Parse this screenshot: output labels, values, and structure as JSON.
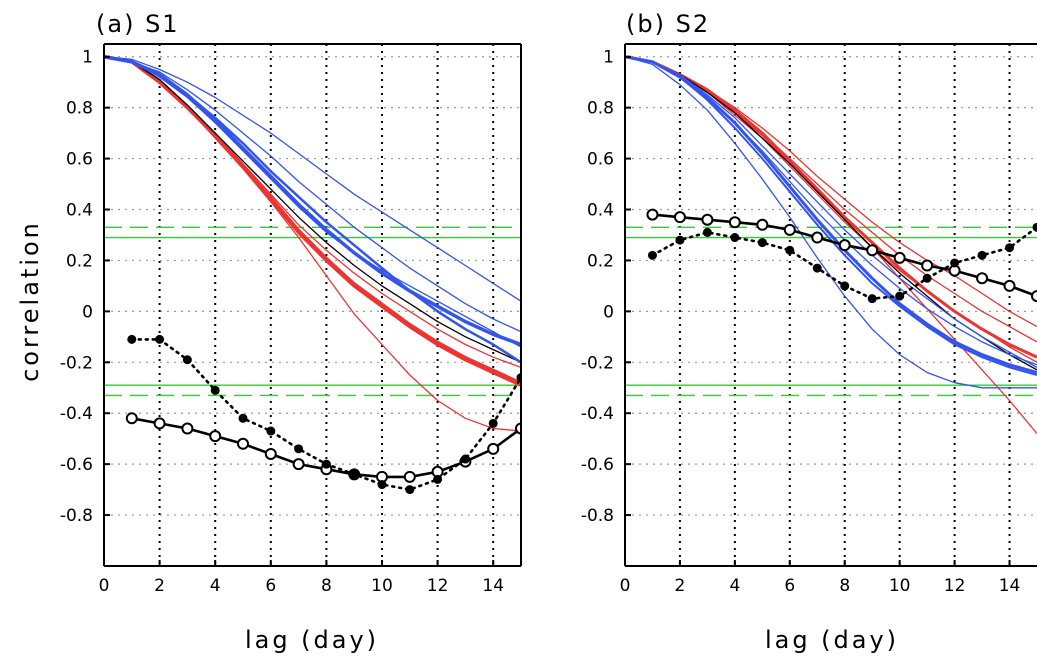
{
  "chart_data": [
    {
      "type": "line",
      "title": "(a) S1",
      "xlabel": "lag (day)",
      "ylabel": "correlation",
      "xlim": [
        0,
        15
      ],
      "ylim": [
        -1,
        1.05
      ],
      "xticks": [
        "0",
        "2",
        "4",
        "6",
        "8",
        "10",
        "12",
        "14"
      ],
      "yticks": [
        "1",
        "0.8",
        "0.6",
        "0.4",
        "0.2",
        "0",
        "-0.2",
        "-0.4",
        "-0.6",
        "-0.8"
      ],
      "grid": true,
      "significance_lines": {
        "solid": [
          0.29,
          -0.29
        ],
        "dashed": [
          0.33,
          -0.33
        ]
      },
      "series": [
        {
          "color": "#ee3333",
          "width": 3.5,
          "x": [
            0,
            1,
            2,
            3,
            4,
            5,
            6,
            7,
            8,
            9,
            10,
            11,
            12,
            13,
            14,
            15
          ],
          "y": [
            1,
            0.98,
            0.9,
            0.8,
            0.69,
            0.57,
            0.44,
            0.31,
            0.2,
            0.1,
            0.02,
            -0.06,
            -0.13,
            -0.19,
            -0.24,
            -0.29
          ]
        },
        {
          "color": "#ee3333",
          "width": 2.5,
          "x": [
            0,
            1,
            2,
            3,
            4,
            5,
            6,
            7,
            8,
            9,
            10,
            11,
            12,
            13,
            14,
            15
          ],
          "y": [
            1,
            0.98,
            0.9,
            0.8,
            0.69,
            0.57,
            0.45,
            0.32,
            0.21,
            0.11,
            0.03,
            -0.05,
            -0.12,
            -0.18,
            -0.23,
            -0.28
          ]
        },
        {
          "color": "#ee3333",
          "width": 1.3,
          "x": [
            0,
            1,
            2,
            3,
            4,
            5,
            6,
            7,
            8,
            9,
            10,
            11,
            12,
            13,
            14,
            15
          ],
          "y": [
            1,
            0.98,
            0.91,
            0.81,
            0.7,
            0.58,
            0.46,
            0.34,
            0.24,
            0.15,
            0.07,
            0,
            -0.07,
            -0.13,
            -0.18,
            -0.22
          ]
        },
        {
          "color": "#ee3333",
          "width": 1.3,
          "x": [
            0,
            1,
            2,
            3,
            4,
            5,
            6,
            7,
            8,
            9,
            10,
            11,
            12,
            13,
            14,
            15
          ],
          "y": [
            1,
            0.98,
            0.91,
            0.8,
            0.68,
            0.56,
            0.43,
            0.29,
            0.14,
            -0.01,
            -0.13,
            -0.25,
            -0.35,
            -0.42,
            -0.46,
            -0.47
          ]
        },
        {
          "color": "#000000",
          "width": 1.3,
          "x": [
            0,
            1,
            2,
            3,
            4,
            5,
            6,
            7,
            8,
            9,
            10,
            11,
            12,
            13,
            14,
            15
          ],
          "y": [
            1,
            0.98,
            0.91,
            0.81,
            0.7,
            0.59,
            0.48,
            0.37,
            0.27,
            0.18,
            0.1,
            0.03,
            -0.04,
            -0.1,
            -0.15,
            -0.2
          ]
        },
        {
          "color": "#3355ee",
          "width": 3.5,
          "x": [
            0,
            1,
            2,
            3,
            4,
            5,
            6,
            7,
            8,
            9,
            10,
            11,
            12,
            13,
            14,
            15
          ],
          "y": [
            1,
            0.98,
            0.93,
            0.85,
            0.75,
            0.64,
            0.53,
            0.42,
            0.32,
            0.23,
            0.15,
            0.08,
            0.02,
            -0.04,
            -0.09,
            -0.13
          ]
        },
        {
          "color": "#3355ee",
          "width": 2.5,
          "x": [
            0,
            1,
            2,
            3,
            4,
            5,
            6,
            7,
            8,
            9,
            10,
            11,
            12,
            13,
            14,
            15
          ],
          "y": [
            1,
            0.98,
            0.93,
            0.85,
            0.76,
            0.66,
            0.55,
            0.45,
            0.35,
            0.26,
            0.17,
            0.08,
            0,
            -0.07,
            -0.13,
            -0.2
          ]
        },
        {
          "color": "#3355ee",
          "width": 1.3,
          "x": [
            0,
            1,
            2,
            3,
            4,
            5,
            6,
            7,
            8,
            9,
            10,
            11,
            12,
            13,
            14,
            15
          ],
          "y": [
            1,
            0.99,
            0.95,
            0.9,
            0.84,
            0.77,
            0.7,
            0.62,
            0.54,
            0.46,
            0.39,
            0.32,
            0.25,
            0.18,
            0.11,
            0.04
          ]
        },
        {
          "color": "#3355ee",
          "width": 1.3,
          "x": [
            0,
            1,
            2,
            3,
            4,
            5,
            6,
            7,
            8,
            9,
            10,
            11,
            12,
            13,
            14,
            15
          ],
          "y": [
            1,
            0.98,
            0.94,
            0.87,
            0.79,
            0.7,
            0.61,
            0.51,
            0.42,
            0.33,
            0.25,
            0.17,
            0.1,
            0.03,
            -0.03,
            -0.08
          ]
        },
        {
          "color": "#3355ee",
          "width": 1.3,
          "x": [
            0,
            1,
            2,
            3,
            4,
            5,
            6,
            7,
            8,
            9,
            10,
            11,
            12,
            13,
            14,
            15
          ],
          "y": [
            1,
            0.98,
            0.92,
            0.84,
            0.74,
            0.63,
            0.52,
            0.41,
            0.31,
            0.23,
            0.16,
            0.1,
            0.04,
            -0.02,
            -0.08,
            -0.14
          ]
        }
      ],
      "marker_series": [
        {
          "style": "solid-open",
          "x": [
            1,
            2,
            3,
            4,
            5,
            6,
            7,
            8,
            9,
            10,
            11,
            12,
            13,
            14,
            15
          ],
          "y": [
            -0.42,
            -0.44,
            -0.46,
            -0.49,
            -0.52,
            -0.56,
            -0.6,
            -0.62,
            -0.64,
            -0.65,
            -0.65,
            -0.63,
            -0.59,
            -0.54,
            -0.46
          ]
        },
        {
          "style": "dotted-filled",
          "x": [
            1,
            2,
            3,
            4,
            5,
            6,
            7,
            8,
            9,
            10,
            11,
            12,
            13,
            14,
            15
          ],
          "y": [
            -0.11,
            -0.11,
            -0.19,
            -0.31,
            -0.42,
            -0.47,
            -0.54,
            -0.6,
            -0.64,
            -0.68,
            -0.7,
            -0.66,
            -0.58,
            -0.44,
            -0.26
          ]
        }
      ]
    },
    {
      "type": "line",
      "title": "(b) S2",
      "xlabel": "lag (day)",
      "ylabel": "",
      "xlim": [
        0,
        15
      ],
      "ylim": [
        -1,
        1.05
      ],
      "xticks": [
        "0",
        "2",
        "4",
        "6",
        "8",
        "10",
        "12",
        "14"
      ],
      "yticks": [
        "1",
        "0.8",
        "0.6",
        "0.4",
        "0.2",
        "0",
        "-0.2",
        "-0.4",
        "-0.6",
        "-0.8"
      ],
      "grid": true,
      "significance_lines": {
        "solid": [
          0.29,
          -0.29
        ],
        "dashed": [
          0.33,
          -0.33
        ]
      },
      "series": [
        {
          "color": "#ee3333",
          "width": 3.0,
          "x": [
            0,
            1,
            2,
            3,
            4,
            5,
            6,
            7,
            8,
            9,
            10,
            11,
            12,
            13,
            14,
            15
          ],
          "y": [
            1,
            0.98,
            0.93,
            0.87,
            0.79,
            0.7,
            0.59,
            0.48,
            0.37,
            0.27,
            0.17,
            0.08,
            0,
            -0.07,
            -0.13,
            -0.18
          ]
        },
        {
          "color": "#ee3333",
          "width": 1.3,
          "x": [
            0,
            1,
            2,
            3,
            4,
            5,
            6,
            7,
            8,
            9,
            10,
            11,
            12,
            13,
            14,
            15
          ],
          "y": [
            1,
            0.98,
            0.93,
            0.86,
            0.78,
            0.69,
            0.58,
            0.47,
            0.36,
            0.25,
            0.13,
            0.01,
            -0.11,
            -0.23,
            -0.35,
            -0.48
          ]
        },
        {
          "color": "#ee3333",
          "width": 1.3,
          "x": [
            0,
            1,
            2,
            3,
            4,
            5,
            6,
            7,
            8,
            9,
            10,
            11,
            12,
            13,
            14,
            15
          ],
          "y": [
            1,
            0.98,
            0.93,
            0.87,
            0.8,
            0.72,
            0.63,
            0.53,
            0.44,
            0.35,
            0.27,
            0.2,
            0.14,
            0.07,
            0,
            -0.06
          ]
        },
        {
          "color": "#ee3333",
          "width": 1.3,
          "x": [
            0,
            1,
            2,
            3,
            4,
            5,
            6,
            7,
            8,
            9,
            10,
            11,
            12,
            13,
            14,
            15
          ],
          "y": [
            1,
            0.98,
            0.93,
            0.86,
            0.78,
            0.7,
            0.6,
            0.5,
            0.4,
            0.31,
            0.22,
            0.14,
            0.07,
            0,
            -0.06,
            -0.12
          ]
        },
        {
          "color": "#ee3333",
          "width": 1.3,
          "x": [
            0,
            1,
            2,
            3,
            4,
            5,
            6,
            7,
            8,
            9,
            10,
            11,
            12,
            13,
            14,
            15
          ],
          "y": [
            1,
            0.98,
            0.93,
            0.86,
            0.77,
            0.68,
            0.57,
            0.46,
            0.35,
            0.25,
            0.16,
            0.08,
            0,
            -0.07,
            -0.14,
            -0.2
          ]
        },
        {
          "color": "#000000",
          "width": 1.3,
          "x": [
            0,
            1,
            2,
            3,
            4,
            5,
            6,
            7,
            8,
            9,
            10,
            11,
            12,
            13,
            14,
            15
          ],
          "y": [
            1,
            0.98,
            0.93,
            0.86,
            0.78,
            0.68,
            0.58,
            0.47,
            0.36,
            0.25,
            0.15,
            0.06,
            -0.03,
            -0.1,
            -0.17,
            -0.23
          ]
        },
        {
          "color": "#3355ee",
          "width": 3.0,
          "x": [
            0,
            1,
            2,
            3,
            4,
            5,
            6,
            7,
            8,
            9,
            10,
            11,
            12,
            13,
            14,
            15
          ],
          "y": [
            1,
            0.98,
            0.92,
            0.84,
            0.74,
            0.62,
            0.49,
            0.36,
            0.24,
            0.13,
            0.03,
            -0.05,
            -0.12,
            -0.17,
            -0.21,
            -0.24
          ]
        },
        {
          "color": "#3355ee",
          "width": 2.0,
          "x": [
            0,
            1,
            2,
            3,
            4,
            5,
            6,
            7,
            8,
            9,
            10,
            11,
            12,
            13,
            14,
            15
          ],
          "y": [
            1,
            0.98,
            0.92,
            0.83,
            0.72,
            0.6,
            0.47,
            0.34,
            0.22,
            0.11,
            0.02,
            -0.06,
            -0.13,
            -0.18,
            -0.22,
            -0.25
          ]
        },
        {
          "color": "#3355ee",
          "width": 1.3,
          "x": [
            0,
            1,
            2,
            3,
            4,
            5,
            6,
            7,
            8,
            9,
            10,
            11,
            12,
            13,
            14,
            15
          ],
          "y": [
            1,
            0.97,
            0.89,
            0.79,
            0.66,
            0.52,
            0.37,
            0.21,
            0.06,
            -0.07,
            -0.17,
            -0.24,
            -0.28,
            -0.3,
            -0.3,
            -0.3
          ]
        },
        {
          "color": "#3355ee",
          "width": 1.3,
          "x": [
            0,
            1,
            2,
            3,
            4,
            5,
            6,
            7,
            8,
            9,
            10,
            11,
            12,
            13,
            14,
            15
          ],
          "y": [
            1,
            0.98,
            0.92,
            0.84,
            0.74,
            0.63,
            0.51,
            0.39,
            0.28,
            0.18,
            0.09,
            0.01,
            -0.06,
            -0.12,
            -0.17,
            -0.21
          ]
        },
        {
          "color": "#3355ee",
          "width": 1.3,
          "x": [
            0,
            1,
            2,
            3,
            4,
            5,
            6,
            7,
            8,
            9,
            10,
            11,
            12,
            13,
            14,
            15
          ],
          "y": [
            1,
            0.98,
            0.93,
            0.85,
            0.76,
            0.65,
            0.54,
            0.43,
            0.32,
            0.22,
            0.13,
            0.05,
            -0.03,
            -0.1,
            -0.16,
            -0.22
          ]
        }
      ],
      "marker_series": [
        {
          "style": "solid-open",
          "x": [
            1,
            2,
            3,
            4,
            5,
            6,
            7,
            8,
            9,
            10,
            11,
            12,
            13,
            14,
            15
          ],
          "y": [
            0.38,
            0.37,
            0.36,
            0.35,
            0.34,
            0.32,
            0.29,
            0.26,
            0.24,
            0.21,
            0.18,
            0.16,
            0.13,
            0.1,
            0.06
          ]
        },
        {
          "style": "dotted-filled",
          "x": [
            1,
            2,
            3,
            4,
            5,
            6,
            7,
            8,
            9,
            10,
            11,
            12,
            13,
            14,
            15
          ],
          "y": [
            0.22,
            0.28,
            0.31,
            0.29,
            0.27,
            0.24,
            0.17,
            0.1,
            0.05,
            0.06,
            0.13,
            0.19,
            0.22,
            0.25,
            0.33
          ]
        }
      ]
    }
  ]
}
